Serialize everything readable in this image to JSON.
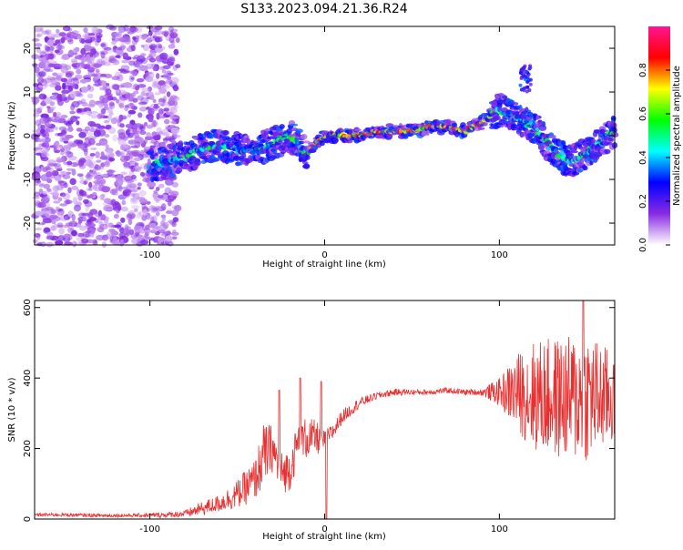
{
  "title": "S133.2023.094.21.36.R24",
  "chart_data": [
    {
      "type": "heatmap",
      "xlabel": "Height of straight line (km)",
      "ylabel": "Frequency (Hz)",
      "xlim": [
        -166,
        166
      ],
      "ylim": [
        -25,
        25
      ],
      "xticks": [
        -100,
        0,
        100
      ],
      "xtick_labels": [
        "-100",
        "0",
        "100"
      ],
      "yticks": [
        -20,
        -10,
        0,
        10,
        20
      ],
      "ytick_labels": [
        "-20",
        "-10",
        "0",
        "10",
        "20"
      ],
      "colorbar": {
        "label": "Normalized spectral amplitude",
        "range": [
          0,
          1
        ],
        "ticks": [
          0.0,
          0.2,
          0.4,
          0.6,
          0.8
        ],
        "tick_labels": [
          "0.0",
          "0.2",
          "0.4",
          "0.6",
          "0.8"
        ],
        "colors": [
          "#ffffff",
          "#8a2be2",
          "#0000ff",
          "#00ffff",
          "#00ff00",
          "#ffff00",
          "#ff0000",
          "#ff1493"
        ]
      },
      "ridge": {
        "x": [
          -100,
          -90,
          -80,
          -70,
          -60,
          -50,
          -40,
          -30,
          -20,
          -10,
          0,
          10,
          20,
          30,
          40,
          50,
          60,
          70,
          80,
          90,
          100,
          110,
          120,
          130,
          140,
          150,
          160,
          166
        ],
        "y": [
          -7,
          -6,
          -5,
          -3,
          -2,
          -3,
          -3,
          -2,
          0,
          -4,
          0,
          0,
          0,
          1,
          1,
          1,
          2,
          2,
          1,
          3,
          6,
          4,
          2,
          -3,
          -6,
          -4,
          -1,
          1
        ]
      },
      "grid": false
    },
    {
      "type": "line",
      "xlabel": "Height of straight line (km)",
      "ylabel": "SNR (10 * v/v)",
      "xlim": [
        -166,
        166
      ],
      "ylim": [
        0,
        620
      ],
      "xticks": [
        -100,
        0,
        100
      ],
      "xtick_labels": [
        "-100",
        "0",
        "100"
      ],
      "yticks": [
        0,
        200,
        400,
        600
      ],
      "ytick_labels": [
        "0",
        "200",
        "400",
        "600"
      ],
      "series": [
        {
          "color": "#e83030",
          "x": [
            -166,
            -150,
            -130,
            -110,
            -90,
            -80,
            -70,
            -60,
            -50,
            -40,
            -35,
            -30,
            -25,
            -20,
            -15,
            -10,
            -5,
            0,
            5,
            10,
            20,
            30,
            40,
            50,
            60,
            70,
            80,
            90,
            100,
            110,
            120,
            130,
            140,
            150,
            160,
            166
          ],
          "y": [
            12,
            12,
            10,
            10,
            12,
            15,
            30,
            45,
            70,
            110,
            180,
            200,
            130,
            140,
            220,
            230,
            230,
            220,
            250,
            290,
            330,
            350,
            360,
            360,
            360,
            365,
            360,
            360,
            360,
            360,
            350,
            345,
            340,
            350,
            345,
            340
          ],
          "amplitude": [
            5,
            5,
            5,
            5,
            8,
            10,
            20,
            25,
            40,
            60,
            90,
            70,
            60,
            60,
            60,
            60,
            50,
            30,
            25,
            20,
            15,
            10,
            10,
            8,
            8,
            8,
            8,
            10,
            40,
            110,
            160,
            170,
            180,
            190,
            150,
            130
          ],
          "spikes": [
            {
              "x": -26,
              "y": 365
            },
            {
              "x": -14,
              "y": 400
            },
            {
              "x": -2,
              "y": 390
            },
            {
              "x": 1,
              "y": 0
            },
            {
              "x": 148,
              "y": 630
            }
          ]
        }
      ],
      "grid": false
    }
  ]
}
